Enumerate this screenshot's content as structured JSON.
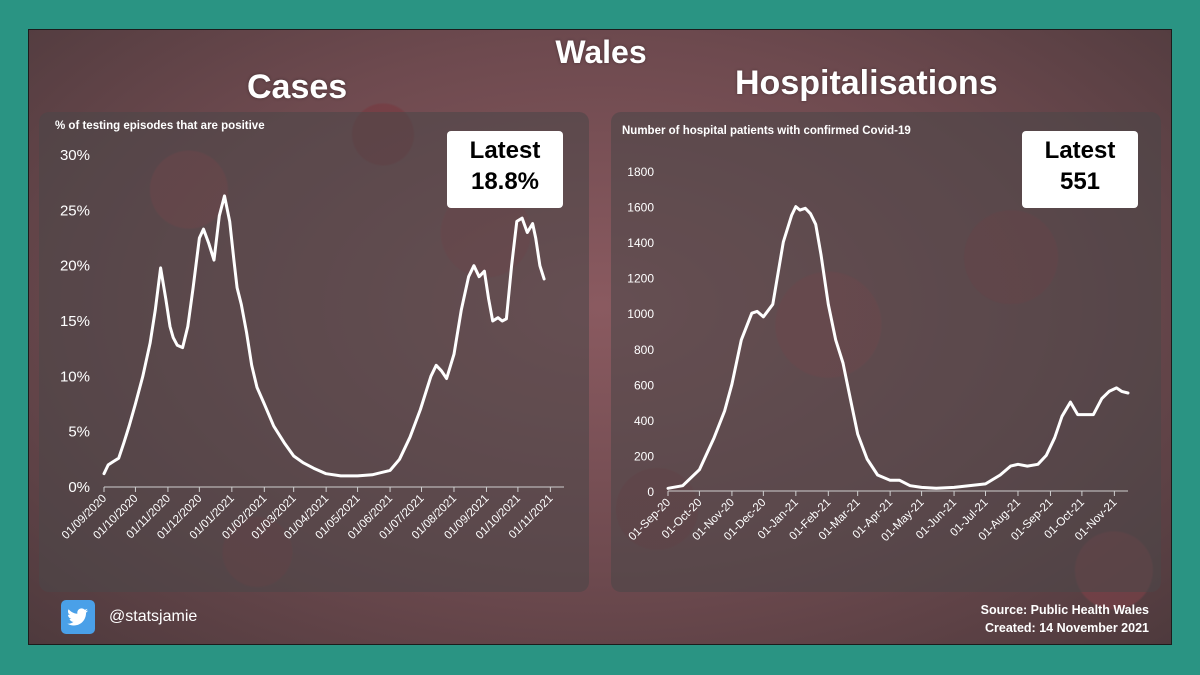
{
  "header": {
    "title": "Wales",
    "cases_title": "Cases",
    "hospitalisations_title": "Hospitalisations"
  },
  "cases_latest": {
    "label": "Latest",
    "value": "18.8%"
  },
  "hosp_latest": {
    "label": "Latest",
    "value": "551"
  },
  "footer": {
    "handle": "@statsjamie",
    "source": "Source: Public Health Wales",
    "created": "Created: 14 November 2021"
  },
  "colors": {
    "background": "#2a9483",
    "line": "#ffffff",
    "twitter": "#4aa0e8"
  },
  "icons": {
    "twitter": "twitter-bird-icon"
  },
  "chart_data": [
    {
      "type": "line",
      "ylabel": "% of testing episodes that are positive",
      "xlabel": "",
      "ylim": [
        0,
        30
      ],
      "yticks": [
        "0%",
        "5%",
        "10%",
        "15%",
        "20%",
        "25%",
        "30%"
      ],
      "xticks": [
        "01/09/2020",
        "01/10/2020",
        "01/11/2020",
        "01/12/2020",
        "01/01/2021",
        "01/02/2021",
        "01/03/2021",
        "01/04/2021",
        "01/05/2021",
        "01/06/2021",
        "01/07/2021",
        "01/08/2021",
        "01/09/2021",
        "01/10/2021",
        "01/11/2021"
      ],
      "x_range": [
        "2020-09-01",
        "2021-11-14"
      ],
      "grid": false,
      "series": [
        {
          "x": [
            "2020-09-01",
            "2020-09-05",
            "2020-09-10",
            "2020-09-15",
            "2020-09-20",
            "2020-09-25",
            "2020-10-01",
            "2020-10-08",
            "2020-10-15",
            "2020-10-20",
            "2020-10-25",
            "2020-10-30",
            "2020-11-03",
            "2020-11-06",
            "2020-11-10",
            "2020-11-15",
            "2020-11-20",
            "2020-11-25",
            "2020-12-01",
            "2020-12-05",
            "2020-12-10",
            "2020-12-15",
            "2020-12-20",
            "2020-12-25",
            "2020-12-30",
            "2021-01-03",
            "2021-01-06",
            "2021-01-10",
            "2021-01-15",
            "2021-01-20",
            "2021-01-25",
            "2021-02-01",
            "2021-02-10",
            "2021-02-20",
            "2021-03-01",
            "2021-03-10",
            "2021-03-20",
            "2021-04-01",
            "2021-04-15",
            "2021-05-01",
            "2021-05-15",
            "2021-06-01",
            "2021-06-10",
            "2021-06-20",
            "2021-06-30",
            "2021-07-10",
            "2021-07-15",
            "2021-07-20",
            "2021-07-25",
            "2021-08-01",
            "2021-08-08",
            "2021-08-15",
            "2021-08-20",
            "2021-08-25",
            "2021-08-30",
            "2021-09-03",
            "2021-09-07",
            "2021-09-12",
            "2021-09-16",
            "2021-09-20",
            "2021-09-25",
            "2021-09-30",
            "2021-10-05",
            "2021-10-10",
            "2021-10-15",
            "2021-10-18",
            "2021-10-22",
            "2021-10-26",
            "2021-10-30",
            "2021-11-03",
            "2021-11-07",
            "2021-11-10",
            "2021-11-14"
          ],
          "values": [
            1.2,
            2.0,
            2.3,
            2.6,
            4.0,
            5.5,
            7.5,
            10.0,
            13.0,
            16.0,
            19.8,
            17.0,
            14.5,
            13.5,
            12.8,
            12.6,
            14.5,
            18.0,
            22.5,
            23.3,
            22.0,
            20.5,
            24.5,
            26.3,
            24.0,
            20.5,
            18.0,
            16.5,
            14.0,
            11.0,
            9.0,
            7.5,
            5.5,
            4.0,
            2.8,
            2.2,
            1.7,
            1.2,
            1.0,
            1.0,
            1.1,
            1.5,
            2.5,
            4.5,
            7.0,
            10.0,
            11.0,
            10.5,
            9.8,
            12.0,
            16.0,
            19.0,
            20.0,
            19.0,
            19.5,
            17.0,
            15.0,
            15.3,
            15.0,
            15.2,
            20.0,
            24.0,
            24.3,
            23.0,
            23.8,
            22.5,
            20.0,
            18.8,
            null,
            null,
            null,
            null,
            null
          ]
        }
      ]
    },
    {
      "type": "line",
      "ylabel": "Number  of hospital patients with confirmed Covid-19",
      "xlabel": "",
      "ylim": [
        0,
        1800
      ],
      "yticks": [
        "0",
        "200",
        "400",
        "600",
        "800",
        "1000",
        "1200",
        "1400",
        "1600",
        "1800"
      ],
      "xticks": [
        "01-Sep-20",
        "01-Oct-20",
        "01-Nov-20",
        "01-Dec-20",
        "01-Jan-21",
        "01-Feb-21",
        "01-Mar-21",
        "01-Apr-21",
        "01-May-21",
        "01-Jun-21",
        "01-Jul-21",
        "01-Aug-21",
        "01-Sep-21",
        "01-Oct-21",
        "01-Nov-21"
      ],
      "x_range": [
        "2020-09-01",
        "2021-11-14"
      ],
      "grid": false,
      "series": [
        {
          "x": [
            "2020-09-01",
            "2020-09-15",
            "2020-10-01",
            "2020-10-15",
            "2020-10-25",
            "2020-11-01",
            "2020-11-10",
            "2020-11-20",
            "2020-11-25",
            "2020-12-01",
            "2020-12-10",
            "2020-12-20",
            "2020-12-28",
            "2021-01-01",
            "2021-01-05",
            "2021-01-10",
            "2021-01-15",
            "2021-01-20",
            "2021-01-25",
            "2021-02-01",
            "2021-02-08",
            "2021-02-15",
            "2021-02-22",
            "2021-03-01",
            "2021-03-10",
            "2021-03-20",
            "2021-04-01",
            "2021-04-10",
            "2021-04-20",
            "2021-05-01",
            "2021-05-15",
            "2021-06-01",
            "2021-06-15",
            "2021-07-01",
            "2021-07-15",
            "2021-07-25",
            "2021-08-01",
            "2021-08-10",
            "2021-08-20",
            "2021-08-28",
            "2021-09-05",
            "2021-09-12",
            "2021-09-20",
            "2021-09-27",
            "2021-10-05",
            "2021-10-12",
            "2021-10-20",
            "2021-10-27",
            "2021-11-03",
            "2021-11-08",
            "2021-11-14"
          ],
          "values": [
            15,
            30,
            120,
            300,
            450,
            600,
            850,
            1000,
            1010,
            980,
            1050,
            1400,
            1550,
            1600,
            1580,
            1590,
            1560,
            1500,
            1330,
            1050,
            850,
            720,
            520,
            320,
            180,
            90,
            60,
            60,
            30,
            20,
            15,
            20,
            30,
            40,
            90,
            140,
            150,
            140,
            150,
            200,
            300,
            420,
            500,
            430,
            430,
            430,
            520,
            560,
            580,
            560,
            551
          ]
        }
      ]
    }
  ]
}
